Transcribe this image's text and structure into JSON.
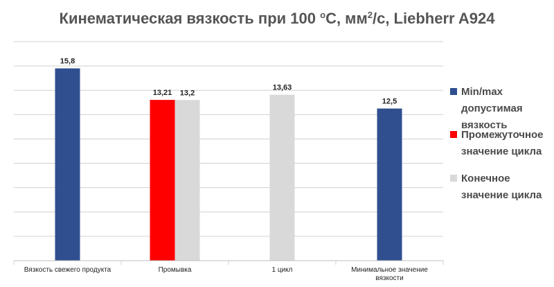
{
  "chart_data": {
    "type": "bar",
    "title_main": "Кинематическая вязкость при 100 ",
    "title_unit_o": "o",
    "title_mid": "C, мм",
    "title_unit_2": "2",
    "title_end": "/с, Liebherr A924",
    "categories": [
      [
        "Вязкость свежего продукта"
      ],
      [
        "Промывка"
      ],
      [
        "1 цикл"
      ],
      [
        "Минимальное значение",
        "вязкости"
      ]
    ],
    "series": [
      {
        "name": "Min/max допустимая вязкость",
        "legend_lines": [
          "Min/max",
          "допустимая",
          "вязкость"
        ],
        "color": "#2F4F8F",
        "values": [
          15.8,
          null,
          null,
          12.5
        ],
        "labels": [
          "15,8",
          "",
          "",
          "12,5"
        ]
      },
      {
        "name": "Промежуточное значение цикла",
        "legend_lines": [
          "Промежуточное",
          "значение цикла"
        ],
        "color": "#FF0000",
        "values": [
          null,
          13.21,
          null,
          null
        ],
        "labels": [
          "",
          "13,21",
          "",
          ""
        ]
      },
      {
        "name": "Конечное значение цикла",
        "legend_lines": [
          "Конечное",
          "значение цикла"
        ],
        "color": "#D9D9D9",
        "values": [
          null,
          13.2,
          13.63,
          null
        ],
        "labels": [
          "",
          "13,2",
          "13,63",
          ""
        ]
      }
    ],
    "ylim": [
      0,
      18
    ],
    "grid": true,
    "legend_position": "right"
  }
}
